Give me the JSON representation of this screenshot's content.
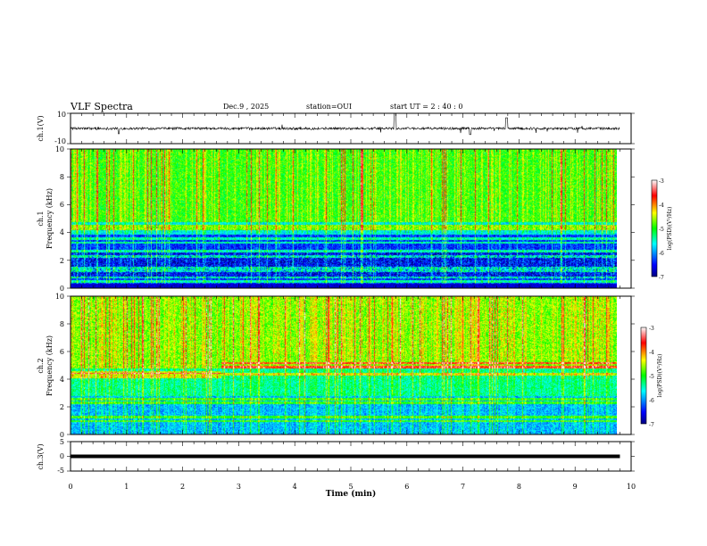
{
  "header": {
    "title": "VLF Spectra",
    "date": "Dec.9  , 2025",
    "station": "station=OUI",
    "start": "start  UT  =   2  : 40 : 0"
  },
  "chart_data": [
    {
      "type": "line",
      "panel": "ch.1 waveform",
      "ylabel": "ch.1(V)",
      "ylim": [
        -10,
        10
      ],
      "yticks": [
        "10",
        "-10"
      ],
      "xlim": [
        0,
        10
      ],
      "baseline": 0,
      "note": "dense noisy waveform, amplitude approx +/-1 V with spikes up to +10 V near t=5.8 min and t=7.8 min, dips to -3 V near t=0.8, 7.1 min"
    },
    {
      "type": "heatmap",
      "panel": "ch.1 spectrogram",
      "ylabel_top": "ch.1",
      "ylabel": "Frequency  (kHz)",
      "ylim": [
        0,
        10
      ],
      "yticks": [
        "0",
        "2",
        "4",
        "6",
        "8",
        "10"
      ],
      "xlim": [
        0,
        9.8
      ],
      "colorbar": {
        "label": "log(PSD)(V²/Hz)",
        "range": [
          -7,
          -3
        ],
        "ticks": [
          "-3",
          "-4",
          "-5",
          "-6",
          "-7"
        ]
      },
      "bands_khz": [
        4.5,
        4.3,
        3.6,
        3.3,
        2.7,
        2.3,
        1.5,
        1.3,
        0.8,
        0.5
      ],
      "upper_level": -4.9,
      "lower_level": -6.4
    },
    {
      "type": "heatmap",
      "panel": "ch.2 spectrogram",
      "ylabel_top": "ch.2",
      "ylabel": "Frequency  (kHz)",
      "ylim": [
        0,
        10
      ],
      "yticks": [
        "0",
        "2",
        "4",
        "6",
        "8",
        "10"
      ],
      "xlim": [
        0,
        9.8
      ],
      "colorbar": {
        "label": "log(PSD)(V²/Hz)",
        "range": [
          -7,
          -3
        ],
        "ticks": [
          "-3",
          "-4",
          "-5",
          "-6",
          "-7"
        ]
      },
      "bands_khz": [
        5.2,
        4.9,
        4.4,
        2.6,
        2.3,
        1.3,
        1.0
      ],
      "upper_level": -4.7,
      "lower_level": -5.9
    },
    {
      "type": "line",
      "panel": "ch.3 signal",
      "ylabel": "ch.3(V)",
      "ylim": [
        -5,
        5
      ],
      "yticks": [
        "5",
        "0",
        "-5"
      ],
      "xlim": [
        0,
        9.8
      ],
      "constant_value": 0,
      "xlabel": "Time  (min)",
      "xticks": [
        "0",
        "1",
        "2",
        "3",
        "4",
        "5",
        "6",
        "7",
        "8",
        "9",
        "10"
      ]
    }
  ]
}
